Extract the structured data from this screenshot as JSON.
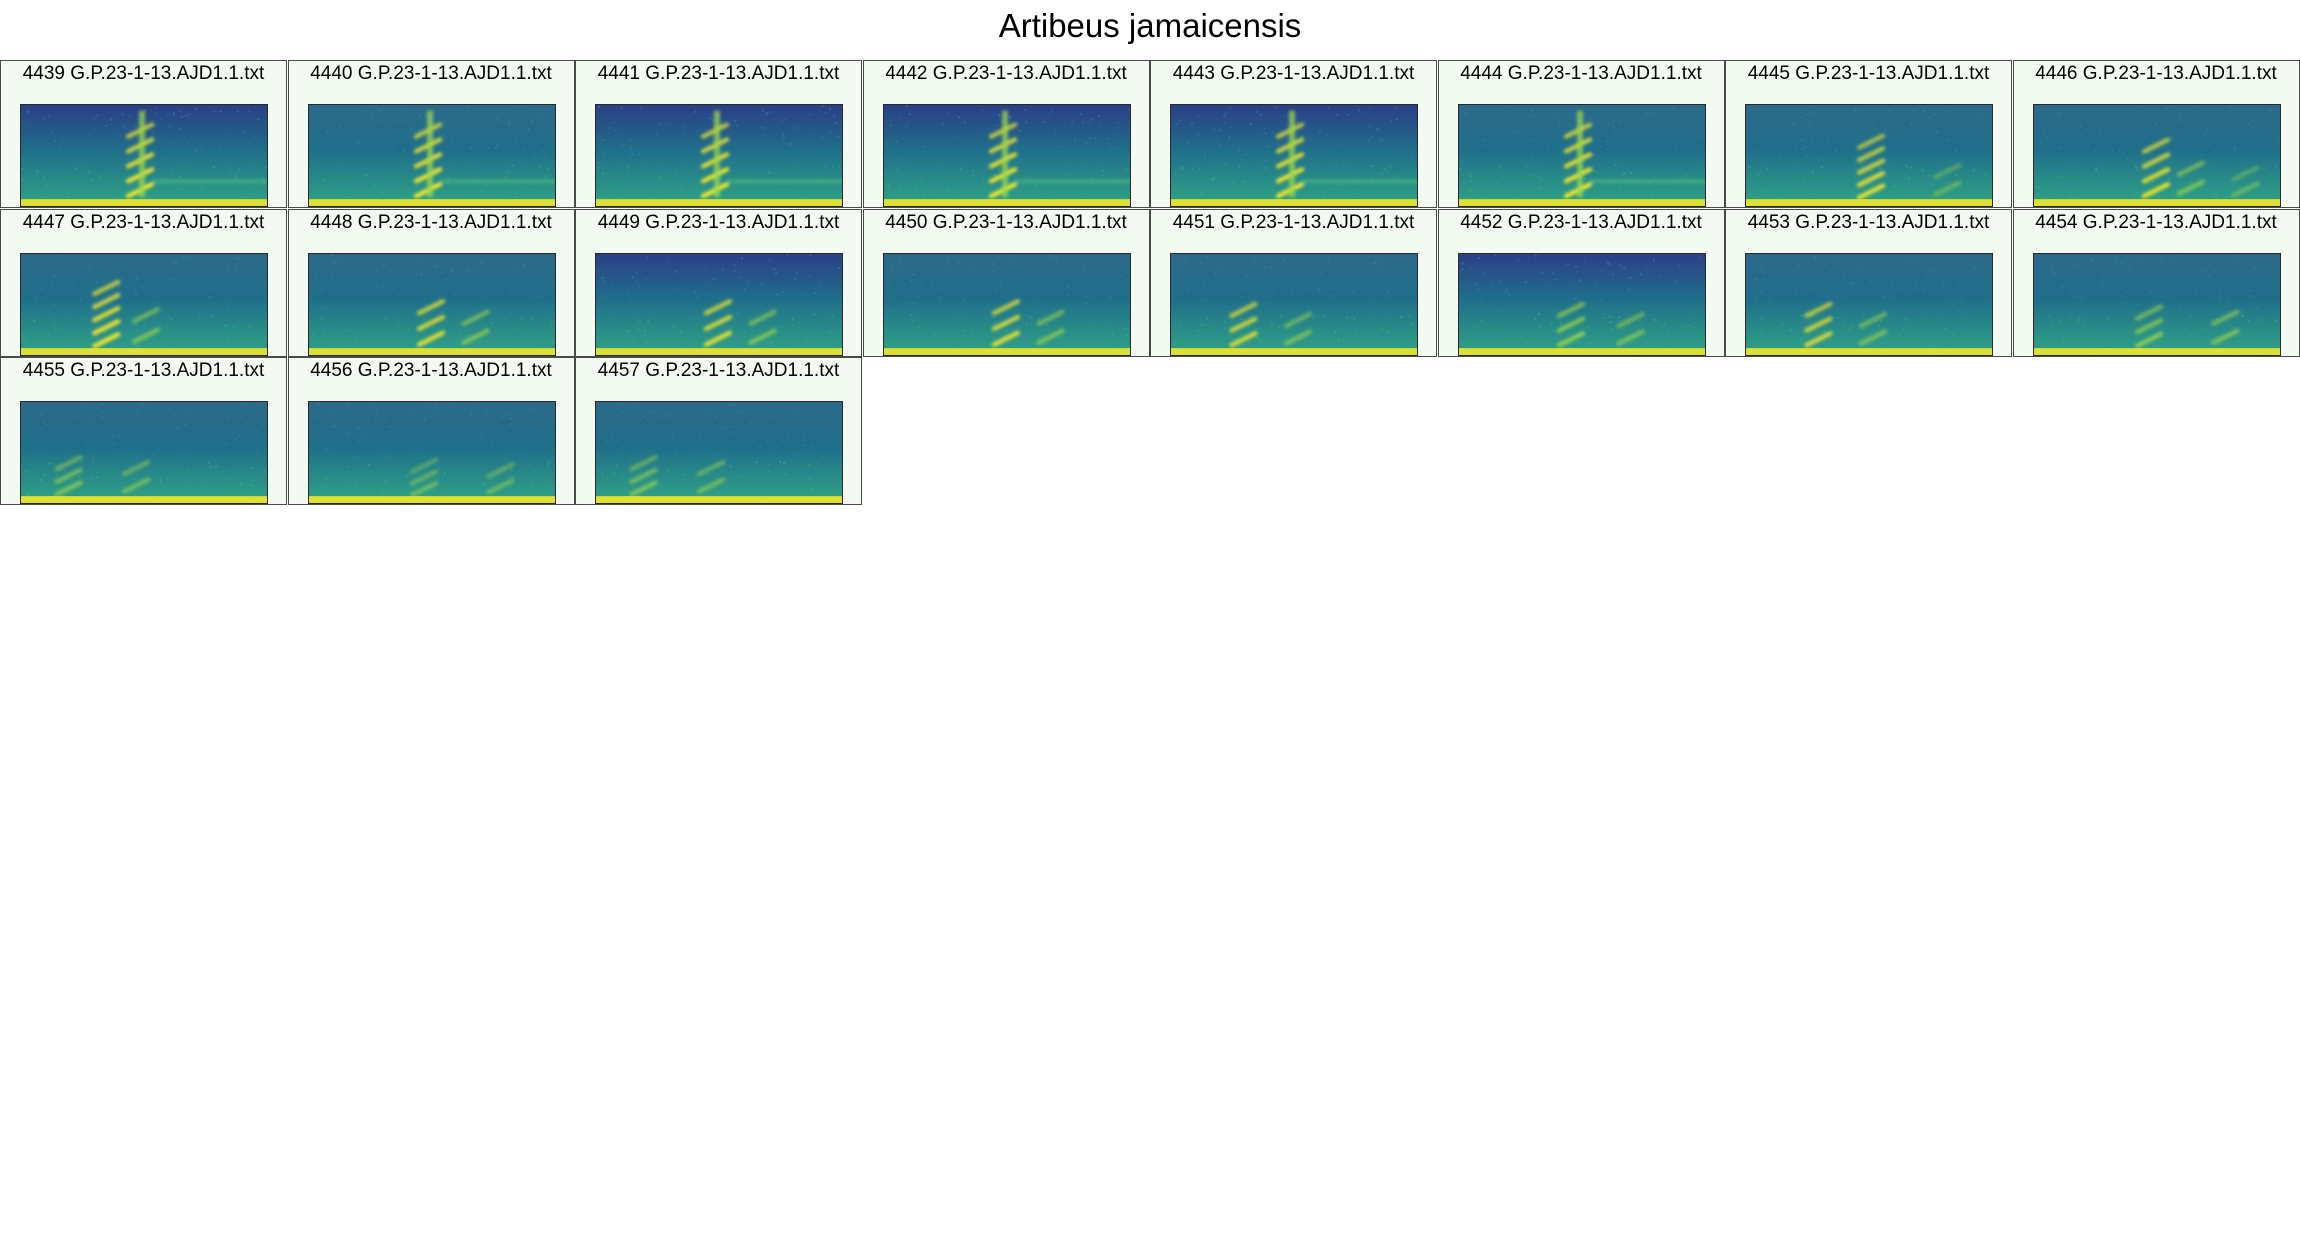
{
  "figure": {
    "title": "Artibeus jamaicensis",
    "colors": {
      "tile_background": "#f2faf2",
      "low": "#1f6f8b",
      "mid": "#26a08a",
      "high": "#f2e72a"
    },
    "panels": [
      {
        "label": "4439 G.P.23-1-13.AJD1.1.txt",
        "pattern": "tall-strokes-early",
        "background": "blue"
      },
      {
        "label": "4440 G.P.23-1-13.AJD1.1.txt",
        "pattern": "tall-strokes-early",
        "background": "teal"
      },
      {
        "label": "4441 G.P.23-1-13.AJD1.1.txt",
        "pattern": "tall-strokes-early",
        "background": "blue"
      },
      {
        "label": "4442 G.P.23-1-13.AJD1.1.txt",
        "pattern": "tall-strokes-early",
        "background": "blue"
      },
      {
        "label": "4443 G.P.23-1-13.AJD1.1.txt",
        "pattern": "tall-strokes-early",
        "background": "blue"
      },
      {
        "label": "4444 G.P.23-1-13.AJD1.1.txt",
        "pattern": "tall-strokes-early",
        "background": "teal"
      },
      {
        "label": "4445 G.P.23-1-13.AJD1.1.txt",
        "pattern": "strokes-mid",
        "background": "teal"
      },
      {
        "label": "4446 G.P.23-1-13.AJD1.1.txt",
        "pattern": "strokes-mid-pair",
        "background": "teal"
      },
      {
        "label": "4447 G.P.23-1-13.AJD1.1.txt",
        "pattern": "bright-early-pair",
        "background": "teal"
      },
      {
        "label": "4448 G.P.23-1-13.AJD1.1.txt",
        "pattern": "pair-mid",
        "background": "teal"
      },
      {
        "label": "4449 G.P.23-1-13.AJD1.1.txt",
        "pattern": "pair-mid",
        "background": "blue"
      },
      {
        "label": "4450 G.P.23-1-13.AJD1.1.txt",
        "pattern": "pair-mid",
        "background": "teal"
      },
      {
        "label": "4451 G.P.23-1-13.AJD1.1.txt",
        "pattern": "pair-early",
        "background": "teal"
      },
      {
        "label": "4452 G.P.23-1-13.AJD1.1.txt",
        "pattern": "pair-late",
        "background": "blue"
      },
      {
        "label": "4453 G.P.23-1-13.AJD1.1.txt",
        "pattern": "pair-early",
        "background": "teal"
      },
      {
        "label": "4454 G.P.23-1-13.AJD1.1.txt",
        "pattern": "pair-late-spread",
        "background": "teal"
      },
      {
        "label": "4455 G.P.23-1-13.AJD1.1.txt",
        "pattern": "pair-early-faint",
        "background": "teal"
      },
      {
        "label": "4456 G.P.23-1-13.AJD1.1.txt",
        "pattern": "pair-late-faint",
        "background": "teal"
      },
      {
        "label": "4457 G.P.23-1-13.AJD1.1.txt",
        "pattern": "pair-early-faint",
        "background": "teal"
      }
    ]
  }
}
